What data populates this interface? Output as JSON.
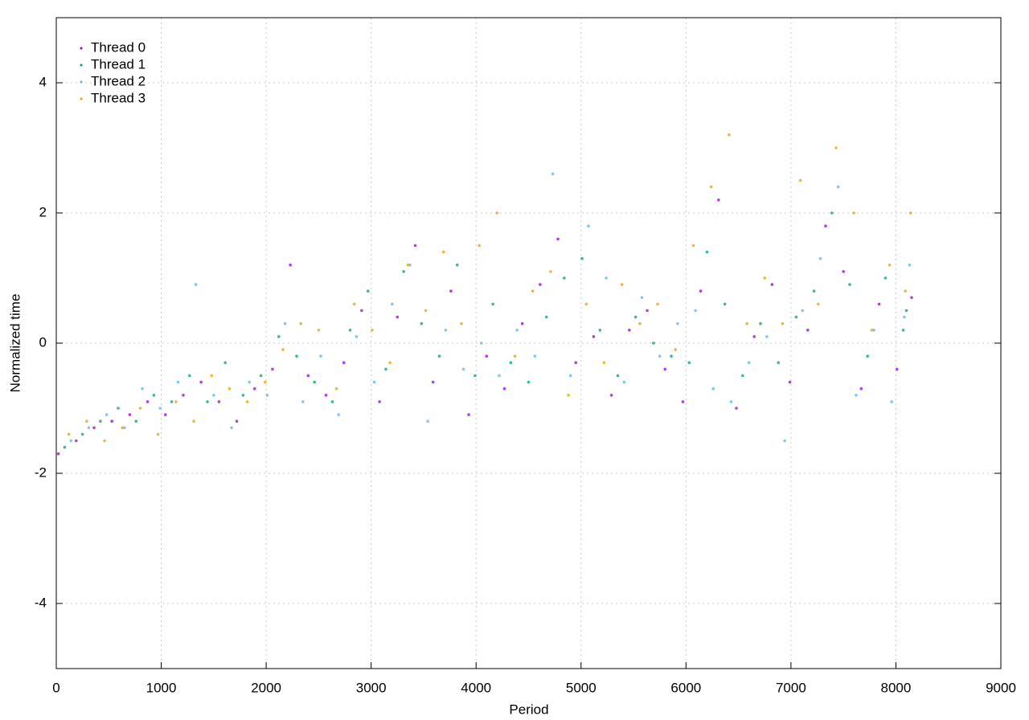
{
  "chart_data": {
    "type": "scatter",
    "xlabel": "Period",
    "ylabel": "Normalized time",
    "xlim": [
      0,
      9000
    ],
    "xticks": [
      0,
      1000,
      2000,
      3000,
      4000,
      5000,
      6000,
      7000,
      8000,
      9000
    ],
    "ylim": [
      -5,
      5
    ],
    "yticks": [
      -4,
      -2,
      0,
      2,
      4
    ],
    "grid": true,
    "legend": "upper left",
    "series": [
      {
        "name": "Thread 0",
        "color": "#9400d3",
        "x": [
          20,
          190,
          360,
          530,
          700,
          870,
          1040,
          1210,
          1380,
          1550,
          1720,
          1890,
          2060,
          2230,
          2400,
          2570,
          2740,
          2910,
          3080,
          3250,
          3420,
          3590,
          3760,
          3930,
          4100,
          4270,
          4440,
          4610,
          4780,
          4950,
          5120,
          5290,
          5460,
          5630,
          5800,
          5970,
          6140,
          6310,
          6480,
          6650,
          6820,
          6990,
          7160,
          7330,
          7500,
          7670,
          7840,
          8010,
          8150
        ],
        "values": [
          -1.7,
          -1.5,
          -1.3,
          -1.2,
          -1.1,
          -0.9,
          -1.1,
          -0.8,
          -0.6,
          -0.9,
          -1.2,
          -0.7,
          -0.4,
          1.2,
          -0.5,
          -0.8,
          -0.3,
          0.5,
          -0.9,
          0.4,
          1.5,
          -0.6,
          0.8,
          -1.1,
          -0.2,
          -0.7,
          0.3,
          0.9,
          1.6,
          -0.3,
          0.1,
          -0.8,
          0.2,
          0.5,
          -0.4,
          -0.9,
          0.8,
          2.2,
          -1.0,
          0.1,
          0.9,
          -0.6,
          0.2,
          1.8,
          1.1,
          -0.7,
          0.6,
          -0.4,
          0.7
        ]
      },
      {
        "name": "Thread 1",
        "color": "#009e73",
        "x": [
          80,
          250,
          420,
          590,
          760,
          930,
          1100,
          1270,
          1440,
          1610,
          1780,
          1950,
          2120,
          2290,
          2460,
          2630,
          2800,
          2970,
          3140,
          3310,
          3480,
          3650,
          3820,
          3990,
          4160,
          4330,
          4500,
          4670,
          4840,
          5010,
          5180,
          5350,
          5520,
          5690,
          5860,
          6030,
          6200,
          6370,
          6540,
          6710,
          6880,
          7050,
          7220,
          7390,
          7560,
          7730,
          7900,
          8070,
          8100
        ],
        "values": [
          -1.6,
          -1.4,
          -1.2,
          -1.0,
          -1.2,
          -0.8,
          -0.9,
          -0.5,
          -0.9,
          -0.3,
          -0.8,
          -0.5,
          0.1,
          -0.2,
          -0.6,
          -0.9,
          0.2,
          0.8,
          -0.4,
          1.1,
          0.3,
          -0.2,
          1.2,
          -0.5,
          0.6,
          -0.3,
          -0.6,
          0.4,
          1.0,
          1.3,
          0.2,
          -0.5,
          0.4,
          0.0,
          -0.2,
          -0.3,
          1.4,
          0.6,
          -0.5,
          0.3,
          -0.3,
          0.4,
          0.8,
          2.0,
          0.9,
          -0.2,
          1.0,
          0.2,
          0.5
        ]
      },
      {
        "name": "Thread 2",
        "color": "#56b4e9",
        "x": [
          140,
          310,
          480,
          650,
          820,
          990,
          1160,
          1330,
          1500,
          1670,
          1840,
          2010,
          2180,
          2350,
          2520,
          2690,
          2860,
          3030,
          3200,
          3370,
          3540,
          3710,
          3880,
          4050,
          4220,
          4390,
          4560,
          4730,
          4900,
          5070,
          5240,
          5410,
          5580,
          5750,
          5920,
          6090,
          6260,
          6430,
          6600,
          6770,
          6940,
          7110,
          7280,
          7450,
          7620,
          7790,
          7960,
          8080,
          8130
        ],
        "values": [
          -1.5,
          -1.3,
          -1.1,
          -1.3,
          -0.7,
          -1.0,
          -0.6,
          0.9,
          -0.8,
          -1.3,
          -0.6,
          -0.8,
          0.3,
          -0.9,
          -0.2,
          -1.1,
          0.1,
          -0.6,
          0.6,
          1.2,
          -1.2,
          0.2,
          -0.4,
          0.0,
          -0.5,
          0.2,
          -0.2,
          2.6,
          -0.5,
          1.8,
          1.0,
          -0.6,
          0.7,
          -0.2,
          0.3,
          0.5,
          -0.7,
          -0.9,
          -0.3,
          0.1,
          -1.5,
          0.5,
          1.3,
          2.4,
          -0.8,
          0.2,
          -0.9,
          0.4,
          1.2
        ]
      },
      {
        "name": "Thread 3",
        "color": "#e69f00",
        "x": [
          120,
          290,
          460,
          630,
          800,
          970,
          1140,
          1310,
          1480,
          1650,
          1820,
          1990,
          2160,
          2330,
          2500,
          2670,
          2840,
          3010,
          3180,
          3350,
          3520,
          3690,
          3860,
          4030,
          4200,
          4370,
          4540,
          4710,
          4880,
          5050,
          5220,
          5390,
          5560,
          5730,
          5900,
          6070,
          6240,
          6410,
          6580,
          6750,
          6920,
          7090,
          7260,
          7430,
          7600,
          7770,
          7940,
          8090,
          8140
        ],
        "values": [
          -1.4,
          -1.2,
          -1.5,
          -1.3,
          -1.0,
          -1.4,
          -0.9,
          -1.2,
          -0.5,
          -0.7,
          -0.9,
          -0.6,
          -0.1,
          0.3,
          0.2,
          -0.7,
          0.6,
          0.2,
          -0.3,
          1.2,
          0.5,
          1.4,
          0.3,
          1.5,
          2.0,
          -0.2,
          0.8,
          1.1,
          -0.8,
          0.6,
          -0.3,
          0.9,
          0.3,
          0.6,
          -0.1,
          1.5,
          2.4,
          3.2,
          0.3,
          1.0,
          0.3,
          2.5,
          0.6,
          3.0,
          2.0,
          0.2,
          1.2,
          0.8,
          2.0
        ]
      }
    ]
  }
}
